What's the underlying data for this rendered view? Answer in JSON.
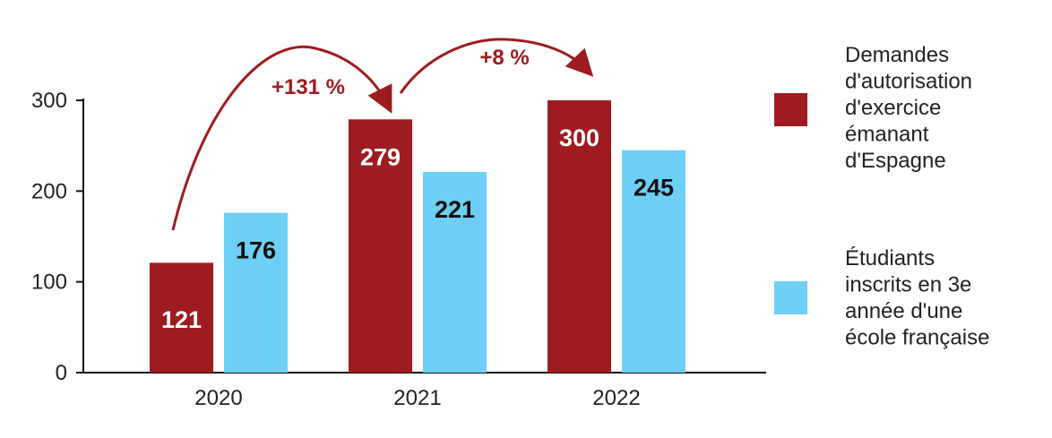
{
  "chart_data": {
    "type": "bar",
    "categories": [
      "2020",
      "2021",
      "2022"
    ],
    "series": [
      {
        "name": "Demandes d'autorisation d'exercice émanant d'Espagne",
        "legend_lines": [
          "Demandes",
          "d'autorisation",
          "d'exercice",
          "émanant",
          "d'Espagne"
        ],
        "values": [
          121,
          279,
          300
        ],
        "labels": [
          "121",
          "279",
          "300"
        ],
        "color": "#9e1c20",
        "label_color": "#ffffff"
      },
      {
        "name": "Étudiants inscrits en 3e année d'une école française",
        "legend_lines": [
          "Étudiants",
          "inscrits en 3e",
          "année d'une",
          "école française"
        ],
        "values": [
          176,
          221,
          245
        ],
        "labels": [
          "176",
          "221",
          "245"
        ],
        "color": "#6dcff6",
        "label_color": "#111111"
      }
    ],
    "yticks": [
      "0",
      "100",
      "200",
      "300"
    ],
    "ylim": [
      0,
      300
    ],
    "annotations": [
      {
        "text": "+131 %",
        "from": "2020",
        "to": "2021"
      },
      {
        "text": "+8 %",
        "from": "2021",
        "to": "2022"
      }
    ],
    "legend_position": "right",
    "grid": false,
    "title": "",
    "xlabel": "",
    "ylabel": ""
  }
}
